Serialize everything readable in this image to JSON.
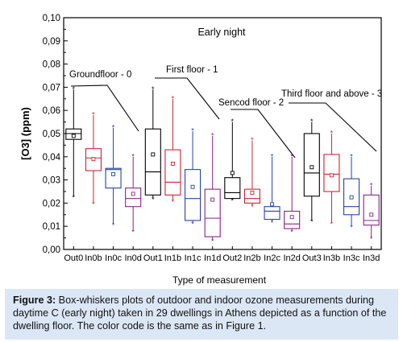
{
  "chart_data": {
    "type": "box",
    "title": "Early night",
    "xlabel": "Type of measurement",
    "ylabel": "[O3] (ppm)",
    "ylim": [
      0,
      0.1
    ],
    "yticks": [
      "0,00",
      "0,01",
      "0,02",
      "0,03",
      "0,04",
      "0,05",
      "0,06",
      "0,07",
      "0,08",
      "0,09",
      "0,10"
    ],
    "categories": [
      "Out0",
      "In0b",
      "In0c",
      "In0d",
      "Out1",
      "In1b",
      "In1c",
      "In1d",
      "Out2",
      "In2b",
      "In2c",
      "In2d",
      "Out3",
      "In3b",
      "In3c",
      "In3d"
    ],
    "series": [
      {
        "category": "Out0",
        "color": "#000000",
        "whisker_low": 0.023,
        "q1": 0.0475,
        "median": 0.05,
        "q3": 0.052,
        "whisker_high": 0.069,
        "mean": 0.049
      },
      {
        "category": "In0b",
        "color": "#cc2233",
        "whisker_low": 0.02,
        "q1": 0.034,
        "median": 0.0395,
        "q3": 0.0435,
        "whisker_high": 0.058,
        "mean": 0.039
      },
      {
        "category": "In0c",
        "color": "#2244aa",
        "whisker_low": 0.011,
        "q1": 0.0265,
        "median": 0.0345,
        "q3": 0.035,
        "whisker_high": 0.0525,
        "mean": 0.0325
      },
      {
        "category": "In0d",
        "color": "#882288",
        "whisker_low": 0.008,
        "q1": 0.0185,
        "median": 0.022,
        "q3": 0.0265,
        "whisker_high": 0.04,
        "mean": 0.024
      },
      {
        "category": "Out1",
        "color": "#000000",
        "whisker_low": 0.022,
        "q1": 0.0235,
        "median": 0.0335,
        "q3": 0.052,
        "whisker_high": 0.069,
        "mean": 0.041
      },
      {
        "category": "In1b",
        "color": "#cc2233",
        "whisker_low": 0.021,
        "q1": 0.0235,
        "median": 0.029,
        "q3": 0.043,
        "whisker_high": 0.065,
        "mean": 0.037
      },
      {
        "category": "In1c",
        "color": "#2244aa",
        "whisker_low": 0.0115,
        "q1": 0.0125,
        "median": 0.022,
        "q3": 0.0345,
        "whisker_high": 0.051,
        "mean": 0.027
      },
      {
        "category": "In1d",
        "color": "#882288",
        "whisker_low": 0.004,
        "q1": 0.0055,
        "median": 0.0135,
        "q3": 0.026,
        "whisker_high": 0.049,
        "mean": 0.0215
      },
      {
        "category": "Out2",
        "color": "#000000",
        "whisker_low": 0.0215,
        "q1": 0.022,
        "median": 0.0245,
        "q3": 0.031,
        "whisker_high": 0.055,
        "mean": 0.033
      },
      {
        "category": "In2b",
        "color": "#cc2233",
        "whisker_low": 0.019,
        "q1": 0.02,
        "median": 0.022,
        "q3": 0.026,
        "whisker_high": 0.047,
        "mean": 0.0245
      },
      {
        "category": "In2c",
        "color": "#2244aa",
        "whisker_low": 0.012,
        "q1": 0.013,
        "median": 0.0165,
        "q3": 0.0185,
        "whisker_high": 0.04,
        "mean": 0.0195
      },
      {
        "category": "In2d",
        "color": "#882288",
        "whisker_low": 0.008,
        "q1": 0.009,
        "median": 0.011,
        "q3": 0.0165,
        "whisker_high": 0.04,
        "mean": 0.014
      },
      {
        "category": "Out3",
        "color": "#000000",
        "whisker_low": 0.0125,
        "q1": 0.023,
        "median": 0.033,
        "q3": 0.05,
        "whisker_high": 0.055,
        "mean": 0.0355
      },
      {
        "category": "In3b",
        "color": "#cc2233",
        "whisker_low": 0.0115,
        "q1": 0.025,
        "median": 0.0325,
        "q3": 0.041,
        "whisker_high": 0.05,
        "mean": 0.032
      },
      {
        "category": "In3c",
        "color": "#2244aa",
        "whisker_low": 0.01,
        "q1": 0.015,
        "median": 0.0185,
        "q3": 0.0305,
        "whisker_high": 0.04,
        "mean": 0.0225
      },
      {
        "category": "In3d",
        "color": "#882288",
        "whisker_low": 0.005,
        "q1": 0.0105,
        "median": 0.0125,
        "q3": 0.0235,
        "whisker_high": 0.0275,
        "mean": 0.015
      }
    ],
    "annotations": [
      {
        "text": "Groundfloor - 0"
      },
      {
        "text": "First floor - 1"
      },
      {
        "text": "Sencod floor - 2"
      },
      {
        "text": "Third floor and above - 3"
      }
    ]
  },
  "caption": {
    "label": "Figure 3:",
    "text": " Box-whiskers plots of outdoor and indoor ozone measurements during daytime C (early night) taken in 29 dwellings in Athens depicted as a function of the dwelling floor. The color code is the same as in Figure 1."
  }
}
